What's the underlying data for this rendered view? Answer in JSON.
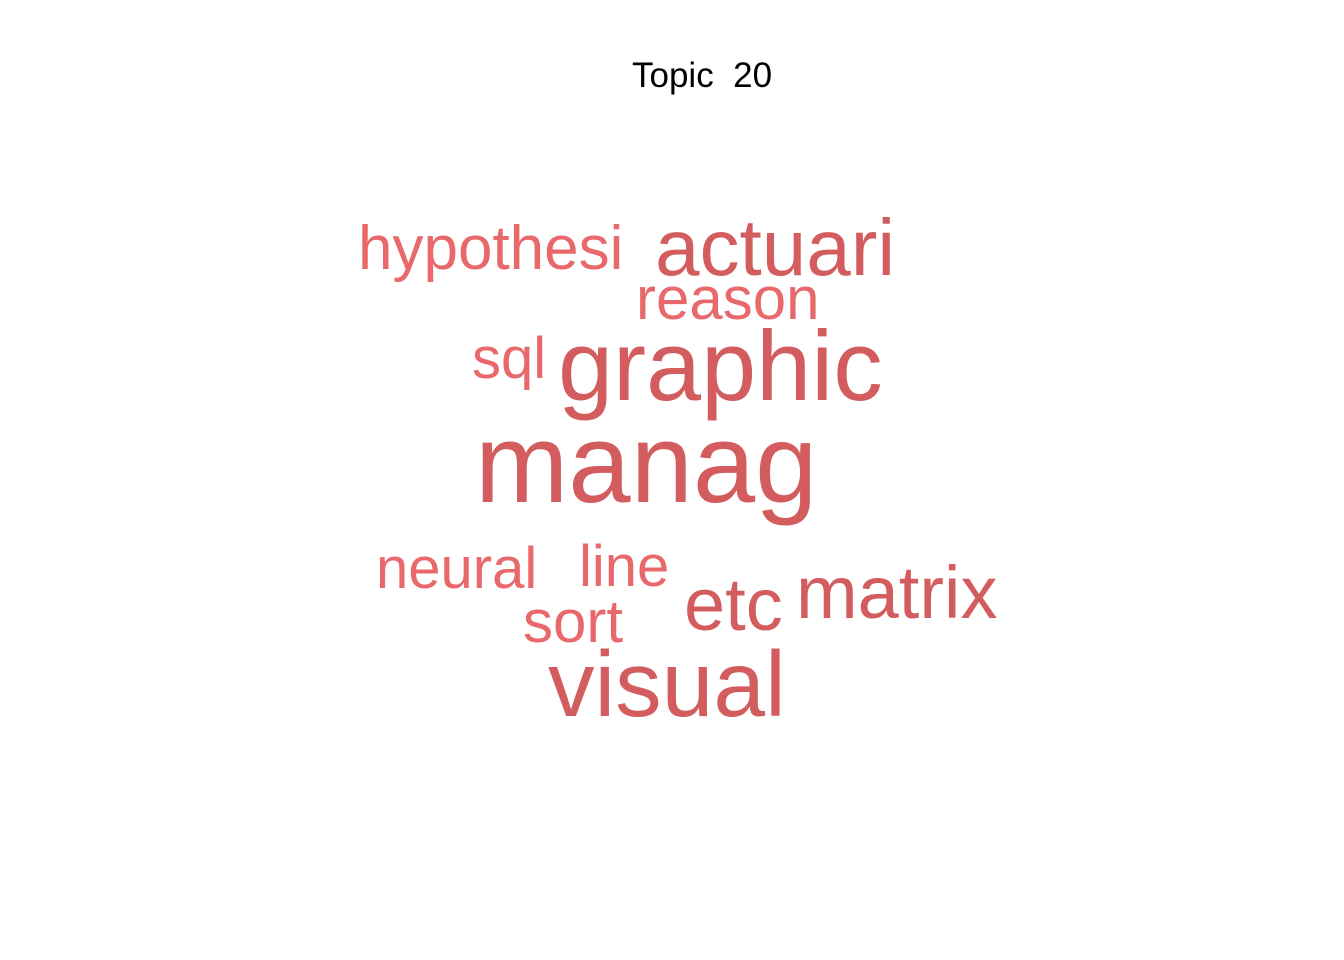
{
  "title": "Topic  20",
  "words": {
    "manag": {
      "text": "manag",
      "color": "#d35c5f"
    },
    "graphic": {
      "text": "graphic",
      "color": "#d35c5f"
    },
    "visual": {
      "text": "visual",
      "color": "#d35c5f"
    },
    "actuari": {
      "text": "actuari",
      "color": "#d35c5f"
    },
    "matrix": {
      "text": "matrix",
      "color": "#d35c5f"
    },
    "etc": {
      "text": "etc",
      "color": "#d35c5f"
    },
    "hypothesi": {
      "text": "hypothesi",
      "color": "#e8686c"
    },
    "reason": {
      "text": "reason",
      "color": "#e8686c"
    },
    "sql": {
      "text": "sql",
      "color": "#e8686c"
    },
    "neural": {
      "text": "neural",
      "color": "#e8686c"
    },
    "line": {
      "text": "line",
      "color": "#e8686c"
    },
    "sort": {
      "text": "sort",
      "color": "#e8686c"
    }
  }
}
